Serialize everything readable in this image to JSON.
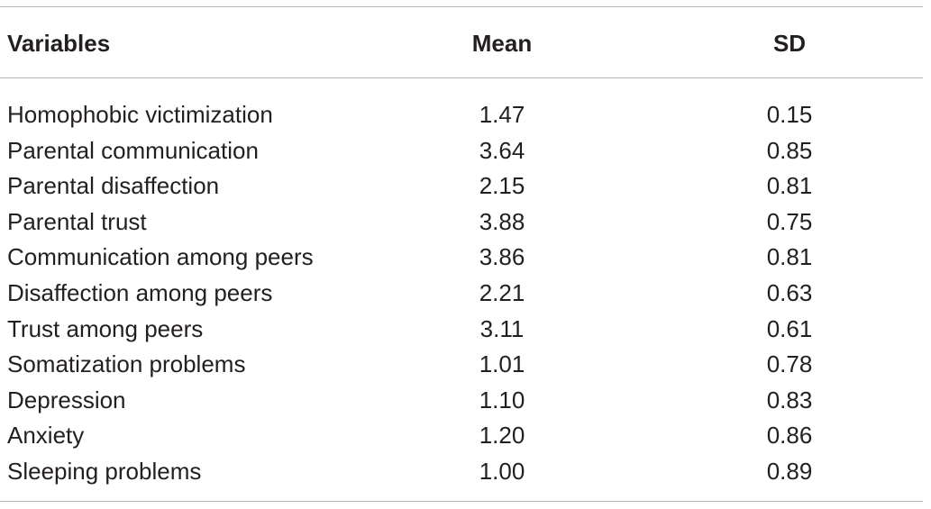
{
  "table": {
    "columns": [
      "Variables",
      "Mean",
      "SD"
    ],
    "rows": [
      {
        "variable": "Homophobic victimization",
        "mean": "1.47",
        "sd": "0.15"
      },
      {
        "variable": "Parental communication",
        "mean": "3.64",
        "sd": "0.85"
      },
      {
        "variable": "Parental disaffection",
        "mean": "2.15",
        "sd": "0.81"
      },
      {
        "variable": "Parental trust",
        "mean": "3.88",
        "sd": "0.75"
      },
      {
        "variable": "Communication among peers",
        "mean": "3.86",
        "sd": "0.81"
      },
      {
        "variable": "Disaffection among peers",
        "mean": "2.21",
        "sd": "0.63"
      },
      {
        "variable": "Trust among peers",
        "mean": "3.11",
        "sd": "0.61"
      },
      {
        "variable": "Somatization problems",
        "mean": "1.01",
        "sd": "0.78"
      },
      {
        "variable": "Depression",
        "mean": "1.10",
        "sd": "0.83"
      },
      {
        "variable": "Anxiety",
        "mean": "1.20",
        "sd": "0.86"
      },
      {
        "variable": "Sleeping problems",
        "mean": "1.00",
        "sd": "0.89"
      }
    ]
  }
}
